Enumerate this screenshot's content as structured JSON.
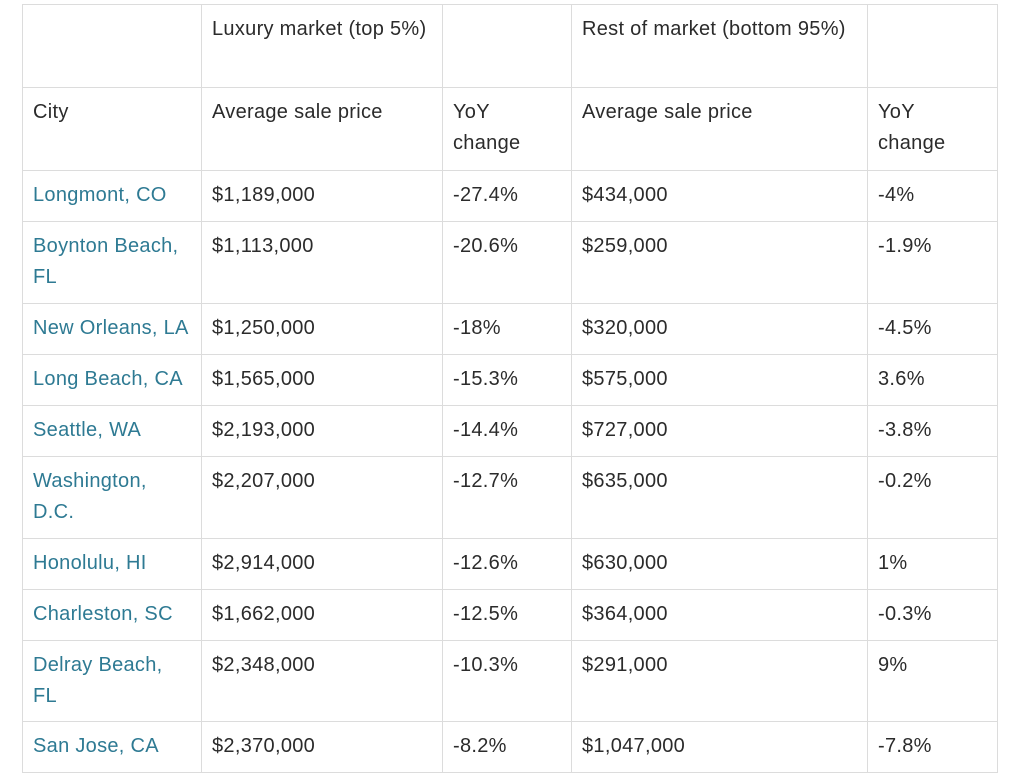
{
  "table": {
    "group_headers": {
      "blank_1": "",
      "luxury": "Luxury market (top 5%)",
      "blank_2": "",
      "rest": "Rest of market (bottom 95%)",
      "blank_3": ""
    },
    "column_headers": {
      "city": "City",
      "lux_price": "Average sale price",
      "lux_yoy": "YoY change",
      "rest_price": "Average sale price",
      "rest_yoy": "YoY change"
    },
    "rows": [
      {
        "city": "Longmont, CO",
        "lux_price": "$1,189,000",
        "lux_yoy": "-27.4%",
        "rest_price": "$434,000",
        "rest_yoy": "-4%"
      },
      {
        "city": "Boynton Beach, FL",
        "lux_price": "$1,113,000",
        "lux_yoy": "-20.6%",
        "rest_price": "$259,000",
        "rest_yoy": "-1.9%"
      },
      {
        "city": "New Orleans, LA",
        "lux_price": "$1,250,000",
        "lux_yoy": "-18%",
        "rest_price": "$320,000",
        "rest_yoy": "-4.5%"
      },
      {
        "city": "Long Beach, CA",
        "lux_price": "$1,565,000",
        "lux_yoy": "-15.3%",
        "rest_price": "$575,000",
        "rest_yoy": "3.6%"
      },
      {
        "city": "Seattle, WA",
        "lux_price": "$2,193,000",
        "lux_yoy": "-14.4%",
        "rest_price": "$727,000",
        "rest_yoy": "-3.8%"
      },
      {
        "city": "Washington, D.C.",
        "lux_price": "$2,207,000",
        "lux_yoy": "-12.7%",
        "rest_price": "$635,000",
        "rest_yoy": "-0.2%"
      },
      {
        "city": "Honolulu, HI",
        "lux_price": "$2,914,000",
        "lux_yoy": "-12.6%",
        "rest_price": "$630,000",
        "rest_yoy": "1%"
      },
      {
        "city": "Charleston, SC",
        "lux_price": "$1,662,000",
        "lux_yoy": "-12.5%",
        "rest_price": "$364,000",
        "rest_yoy": "-0.3%"
      },
      {
        "city": "Delray Beach, FL",
        "lux_price": "$2,348,000",
        "lux_yoy": "-10.3%",
        "rest_price": "$291,000",
        "rest_yoy": "9%"
      },
      {
        "city": "San Jose, CA",
        "lux_price": "$2,370,000",
        "lux_yoy": "-8.2%",
        "rest_price": "$1,047,000",
        "rest_yoy": "-7.8%"
      }
    ]
  },
  "colors": {
    "link": "#2e7a93",
    "text": "#2b2b2b",
    "border": "#dcdcdc"
  }
}
